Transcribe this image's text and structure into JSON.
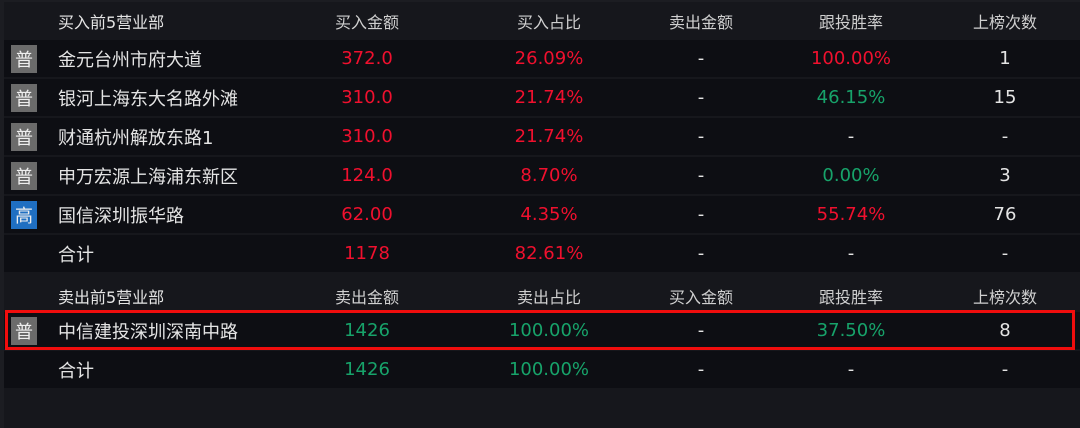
{
  "buy": {
    "headers": [
      "买入前5营业部",
      "买入金额",
      "买入占比",
      "卖出金额",
      "跟投胜率",
      "上榜次数"
    ],
    "rows": [
      {
        "badge": "普",
        "name": "金元台州市府大道",
        "amount": "372.0",
        "ratio": "26.09%",
        "sell": "-",
        "win": "100.00%",
        "win_color": "red",
        "count": "1"
      },
      {
        "badge": "普",
        "name": "银河上海东大名路外滩",
        "amount": "310.0",
        "ratio": "21.74%",
        "sell": "-",
        "win": "46.15%",
        "win_color": "green",
        "count": "15"
      },
      {
        "badge": "普",
        "name": "财通杭州解放东路1",
        "amount": "310.0",
        "ratio": "21.74%",
        "sell": "-",
        "win": "-",
        "win_color": "white",
        "count": "-"
      },
      {
        "badge": "普",
        "name": "申万宏源上海浦东新区",
        "amount": "124.0",
        "ratio": "8.70%",
        "sell": "-",
        "win": "0.00%",
        "win_color": "green",
        "count": "3"
      },
      {
        "badge": "高",
        "name": "国信深圳振华路",
        "amount": "62.00",
        "ratio": "4.35%",
        "sell": "-",
        "win": "55.74%",
        "win_color": "red",
        "count": "76"
      }
    ],
    "total": {
      "name": "合计",
      "amount": "1178",
      "ratio": "82.61%",
      "sell": "-",
      "win": "-",
      "count": "-"
    }
  },
  "sell": {
    "headers": [
      "卖出前5营业部",
      "卖出金额",
      "卖出占比",
      "买入金额",
      "跟投胜率",
      "上榜次数"
    ],
    "rows": [
      {
        "badge": "普",
        "name": "中信建投深圳深南中路",
        "amount": "1426",
        "ratio": "100.00%",
        "buy": "-",
        "win": "37.50%",
        "count": "8"
      }
    ],
    "total": {
      "name": "合计",
      "amount": "1426",
      "ratio": "100.00%",
      "buy": "-",
      "win": "-",
      "count": "-"
    }
  },
  "colors": {
    "up": "#f0102e",
    "down": "#17a36a",
    "highlight": "#f00d0d"
  }
}
